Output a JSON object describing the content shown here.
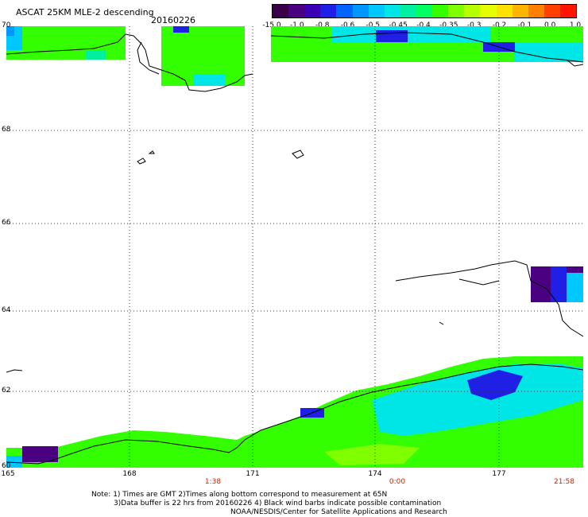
{
  "header": {
    "title": "ASCAT 25KM MLE-2 descending",
    "date": "20160226"
  },
  "colorbar": {
    "labels": [
      "-15.0",
      "-1.0",
      "-0.8",
      "-0.6",
      "-0.5",
      "-0.45",
      "-0.4",
      "-0.35",
      "-0.3",
      "-0.2",
      "-0.1",
      "0.0",
      "1.0"
    ],
    "colors": [
      "#3a0048",
      "#4b0082",
      "#3b00b5",
      "#1f1fe6",
      "#0064ff",
      "#0096ff",
      "#00c8ff",
      "#00e6e6",
      "#00f0a0",
      "#00ff60",
      "#33ff00",
      "#80ff00",
      "#b4ff00",
      "#e6ff00",
      "#ffe000",
      "#ffb400",
      "#ff8000",
      "#ff4000",
      "#ff1400"
    ]
  },
  "map": {
    "lat_labels": [
      "70",
      "68",
      "66",
      "64",
      "62",
      "60"
    ],
    "lon_labels": [
      "165",
      "168",
      "171",
      "174",
      "177"
    ],
    "time_labels": [
      "1:38",
      "0:00",
      "21:58"
    ],
    "gridline_color": "#333333",
    "coast_color": "#000000"
  },
  "footer": {
    "note1": "Note: 1) Times are GMT 2)Times along bottom correspond to measurement at 65N",
    "note2": "3)Data buffer is 22 hrs from 20160226 4) Black wind barbs indicate possible contamination",
    "credit": "NOAA/NESDIS/Center for Satellite Applications and Research"
  }
}
